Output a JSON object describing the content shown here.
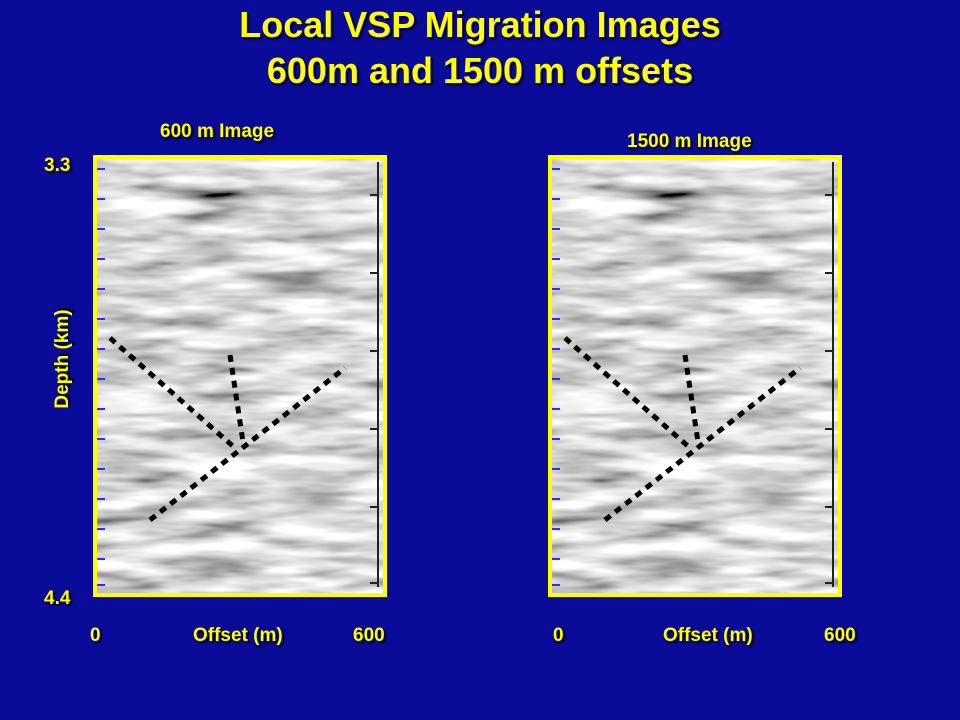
{
  "title": [
    "Local VSP Migration Images",
    "600m and 1500 m offsets"
  ],
  "panels": [
    {
      "label": "600 m Image",
      "depth_top": "3.3",
      "depth_bottom": "4.4",
      "depth_label": "Depth (km)",
      "offset_start": "0",
      "offset_label": "Offset (m)",
      "offset_end": "600"
    },
    {
      "label": "1500 m Image",
      "offset_start": "0",
      "offset_label": "Offset (m)",
      "offset_end": "600"
    }
  ]
}
